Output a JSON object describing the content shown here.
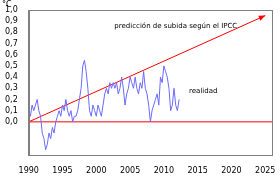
{
  "chart_data": {
    "type": "line",
    "ylabel": "°C",
    "xlim": [
      1990,
      2026
    ],
    "ylim": [
      -0.3,
      1.0
    ],
    "xticks": [
      1990,
      1995,
      2000,
      2005,
      2010,
      2015,
      2020,
      2025
    ],
    "yticks": [
      {
        "value": 0.0,
        "label": "0,0"
      },
      {
        "value": 0.1,
        "label": "0,1"
      },
      {
        "value": 0.2,
        "label": "0,2"
      },
      {
        "value": 0.3,
        "label": "0,3"
      },
      {
        "value": 0.4,
        "label": "0,4"
      },
      {
        "value": 0.5,
        "label": "0,5"
      },
      {
        "value": 0.6,
        "label": "0,6"
      },
      {
        "value": 0.7,
        "label": "0,7"
      },
      {
        "value": 0.8,
        "label": "0,8"
      },
      {
        "value": 0.9,
        "label": "0,9"
      },
      {
        "value": 1.0,
        "label": "1,0"
      }
    ],
    "grid": false,
    "series": [
      {
        "name": "realidad",
        "color": "#6b6bff",
        "x": [
          1990,
          1990.25,
          1990.5,
          1990.75,
          1991,
          1991.25,
          1991.5,
          1991.75,
          1992,
          1992.25,
          1992.5,
          1992.75,
          1993,
          1993.25,
          1993.5,
          1993.75,
          1994,
          1994.25,
          1994.5,
          1994.75,
          1995,
          1995.25,
          1995.5,
          1995.75,
          1996,
          1996.25,
          1996.5,
          1996.75,
          1997,
          1997.25,
          1997.5,
          1997.75,
          1998,
          1998.25,
          1998.5,
          1998.75,
          1999,
          1999.25,
          1999.5,
          1999.75,
          2000,
          2000.25,
          2000.5,
          2000.75,
          2001,
          2001.25,
          2001.5,
          2001.75,
          2002,
          2002.25,
          2002.5,
          2002.75,
          2003,
          2003.25,
          2003.5,
          2003.75,
          2004,
          2004.25,
          2004.5,
          2004.75,
          2005,
          2005.25,
          2005.5,
          2005.75,
          2006,
          2006.25,
          2006.5,
          2006.75,
          2007,
          2007.25,
          2007.5,
          2007.75,
          2008,
          2008.25,
          2008.5,
          2008.75,
          2009,
          2009.25,
          2009.5,
          2009.75,
          2010,
          2010.25,
          2010.5,
          2010.75,
          2011,
          2011.25,
          2011.5,
          2011.75,
          2012,
          2012.25
        ],
        "values": [
          0.1,
          0.05,
          0.15,
          0.1,
          0.15,
          0.2,
          0.1,
          0.05,
          -0.1,
          -0.15,
          -0.25,
          -0.2,
          -0.1,
          -0.15,
          -0.05,
          -0.1,
          0.0,
          0.05,
          0.1,
          0.05,
          0.15,
          0.1,
          0.2,
          0.1,
          0.05,
          0.1,
          0.0,
          0.05,
          0.05,
          0.1,
          0.2,
          0.3,
          0.5,
          0.55,
          0.45,
          0.3,
          0.1,
          0.05,
          0.15,
          0.1,
          0.05,
          0.15,
          0.1,
          0.05,
          0.15,
          0.25,
          0.3,
          0.25,
          0.35,
          0.3,
          0.35,
          0.3,
          0.35,
          0.25,
          0.3,
          0.4,
          0.3,
          0.15,
          0.25,
          0.3,
          0.4,
          0.35,
          0.3,
          0.4,
          0.3,
          0.25,
          0.35,
          0.3,
          0.45,
          0.3,
          0.25,
          0.15,
          0.0,
          0.1,
          0.15,
          0.2,
          0.25,
          0.15,
          0.4,
          0.35,
          0.5,
          0.45,
          0.4,
          0.3,
          0.1,
          0.15,
          0.3,
          0.15,
          0.1,
          0.2
        ]
      },
      {
        "name": "predicción de subida según el IPCC",
        "color": "#ff0000",
        "marker": "arrow",
        "x": [
          1990,
          2025
        ],
        "values": [
          0.0,
          0.95
        ]
      },
      {
        "color": "#ff0000",
        "x": [
          1990,
          2026
        ],
        "values": [
          0.0,
          0.0
        ]
      }
    ]
  }
}
